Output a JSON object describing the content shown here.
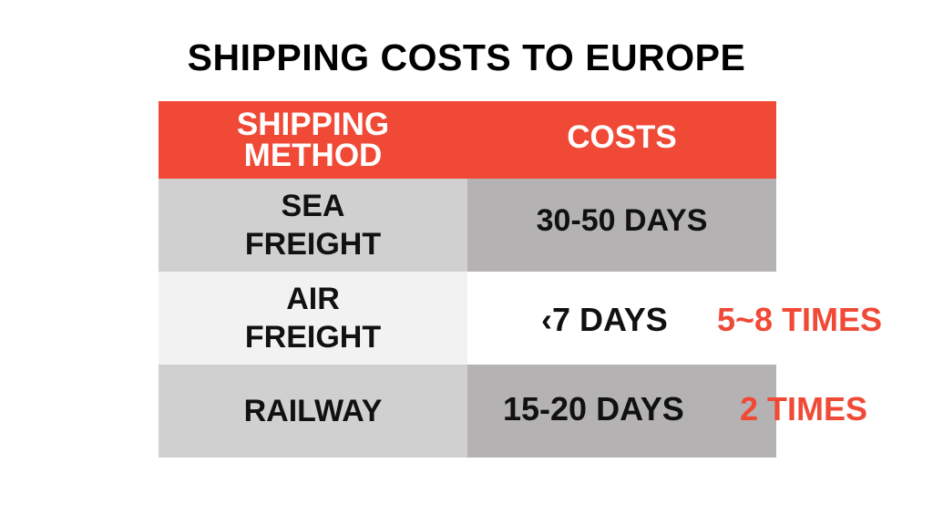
{
  "title": "SHIPPING COSTS TO EUROPE",
  "table": {
    "headers": [
      "SHIPPING METHOD",
      "COSTS"
    ],
    "header_lines": [
      "SHIPPING",
      "METHOD"
    ],
    "rows": [
      {
        "method_lines": [
          "SEA",
          "FREIGHT"
        ],
        "time": "30-50 DAYS",
        "multiplier": ""
      },
      {
        "method_lines": [
          "AIR",
          "FREIGHT"
        ],
        "time": "‹7 DAYS",
        "multiplier": "5~8 TIMES"
      },
      {
        "method_lines": [
          "RAILWAY"
        ],
        "time": "15-20 DAYS",
        "multiplier": "2 TIMES"
      }
    ]
  },
  "colors": {
    "accent": "#f04a37",
    "col1_gray": "#d0d0d0",
    "col2_gray": "#b4b2b3",
    "col1_light": "#f2f2f2"
  }
}
